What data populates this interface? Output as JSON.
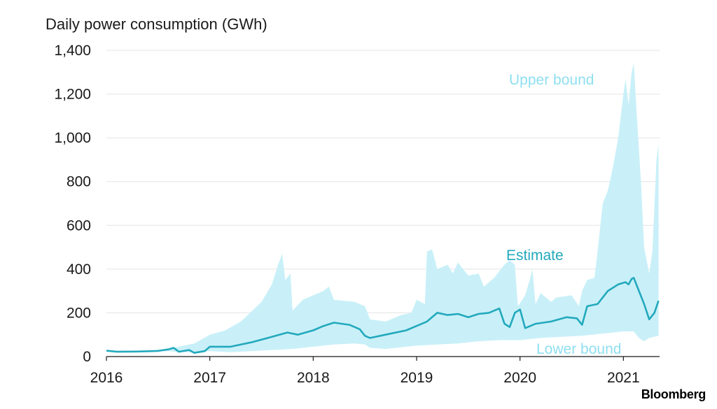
{
  "source_logo": "Bloomberg",
  "chart_data": {
    "type": "area",
    "title": "Daily power consumption (GWh)",
    "xlabel": "",
    "ylabel": "Daily power consumption (GWh)",
    "xlim": [
      2016.0,
      2021.35
    ],
    "ylim": [
      0,
      1400
    ],
    "y_ticks": [
      0,
      200,
      400,
      600,
      800,
      1000,
      1200,
      1400
    ],
    "y_tick_labels": [
      "0",
      "200",
      "400",
      "600",
      "800",
      "1,000",
      "1,200",
      "1,400"
    ],
    "x_ticks": [
      2016,
      2017,
      2018,
      2019,
      2020,
      2021
    ],
    "x_tick_labels": [
      "2016",
      "2017",
      "2018",
      "2019",
      "2020",
      "2021"
    ],
    "grid": true,
    "colors": {
      "band": "#c9f0f8",
      "estimate": "#23a9bd",
      "band_label": "#8fdff0"
    },
    "annotations": {
      "upper": "Upper bound",
      "lower": "Lower bound",
      "estimate": "Estimate"
    },
    "series": [
      {
        "name": "Upper bound",
        "points": [
          [
            2016.0,
            27
          ],
          [
            2016.3,
            24
          ],
          [
            2016.6,
            35
          ],
          [
            2016.7,
            45
          ],
          [
            2016.85,
            60
          ],
          [
            2017.0,
            100
          ],
          [
            2017.15,
            120
          ],
          [
            2017.3,
            160
          ],
          [
            2017.5,
            250
          ],
          [
            2017.6,
            330
          ],
          [
            2017.66,
            420
          ],
          [
            2017.7,
            470
          ],
          [
            2017.73,
            350
          ],
          [
            2017.78,
            380
          ],
          [
            2017.8,
            210
          ],
          [
            2017.9,
            260
          ],
          [
            2018.0,
            280
          ],
          [
            2018.1,
            300
          ],
          [
            2018.15,
            320
          ],
          [
            2018.2,
            260
          ],
          [
            2018.4,
            250
          ],
          [
            2018.5,
            230
          ],
          [
            2018.55,
            170
          ],
          [
            2018.7,
            160
          ],
          [
            2018.85,
            190
          ],
          [
            2018.95,
            200
          ],
          [
            2019.0,
            260
          ],
          [
            2019.08,
            240
          ],
          [
            2019.1,
            480
          ],
          [
            2019.15,
            490
          ],
          [
            2019.2,
            400
          ],
          [
            2019.3,
            420
          ],
          [
            2019.35,
            380
          ],
          [
            2019.4,
            430
          ],
          [
            2019.5,
            370
          ],
          [
            2019.6,
            380
          ],
          [
            2019.65,
            320
          ],
          [
            2019.75,
            360
          ],
          [
            2019.85,
            420
          ],
          [
            2019.9,
            440
          ],
          [
            2019.95,
            420
          ],
          [
            2019.98,
            230
          ],
          [
            2020.05,
            280
          ],
          [
            2020.1,
            360
          ],
          [
            2020.12,
            400
          ],
          [
            2020.15,
            240
          ],
          [
            2020.2,
            290
          ],
          [
            2020.3,
            250
          ],
          [
            2020.35,
            270
          ],
          [
            2020.5,
            280
          ],
          [
            2020.57,
            230
          ],
          [
            2020.6,
            300
          ],
          [
            2020.65,
            350
          ],
          [
            2020.72,
            360
          ],
          [
            2020.75,
            480
          ],
          [
            2020.8,
            700
          ],
          [
            2020.85,
            760
          ],
          [
            2020.9,
            870
          ],
          [
            2020.95,
            1000
          ],
          [
            2021.0,
            1200
          ],
          [
            2021.02,
            1270
          ],
          [
            2021.05,
            1150
          ],
          [
            2021.08,
            1300
          ],
          [
            2021.1,
            1340
          ],
          [
            2021.13,
            1100
          ],
          [
            2021.17,
            800
          ],
          [
            2021.2,
            500
          ],
          [
            2021.25,
            380
          ],
          [
            2021.28,
            480
          ],
          [
            2021.32,
            900
          ],
          [
            2021.34,
            970
          ]
        ]
      },
      {
        "name": "Lower bound",
        "points": [
          [
            2016.0,
            27
          ],
          [
            2016.3,
            20
          ],
          [
            2016.6,
            25
          ],
          [
            2016.7,
            20
          ],
          [
            2016.85,
            20
          ],
          [
            2017.0,
            25
          ],
          [
            2017.2,
            20
          ],
          [
            2017.4,
            25
          ],
          [
            2017.6,
            30
          ],
          [
            2017.8,
            35
          ],
          [
            2018.0,
            45
          ],
          [
            2018.2,
            55
          ],
          [
            2018.4,
            60
          ],
          [
            2018.5,
            55
          ],
          [
            2018.55,
            40
          ],
          [
            2018.7,
            35
          ],
          [
            2018.9,
            45
          ],
          [
            2019.0,
            50
          ],
          [
            2019.2,
            55
          ],
          [
            2019.4,
            60
          ],
          [
            2019.6,
            70
          ],
          [
            2019.8,
            75
          ],
          [
            2020.0,
            75
          ],
          [
            2020.2,
            85
          ],
          [
            2020.4,
            90
          ],
          [
            2020.6,
            95
          ],
          [
            2020.8,
            105
          ],
          [
            2020.9,
            110
          ],
          [
            2021.0,
            115
          ],
          [
            2021.1,
            115
          ],
          [
            2021.15,
            85
          ],
          [
            2021.2,
            70
          ],
          [
            2021.25,
            85
          ],
          [
            2021.34,
            95
          ]
        ]
      },
      {
        "name": "Estimate",
        "points": [
          [
            2016.0,
            27
          ],
          [
            2016.1,
            22
          ],
          [
            2016.3,
            23
          ],
          [
            2016.5,
            26
          ],
          [
            2016.6,
            33
          ],
          [
            2016.65,
            40
          ],
          [
            2016.7,
            22
          ],
          [
            2016.8,
            30
          ],
          [
            2016.85,
            17
          ],
          [
            2016.95,
            25
          ],
          [
            2017.0,
            45
          ],
          [
            2017.2,
            45
          ],
          [
            2017.4,
            65
          ],
          [
            2017.6,
            90
          ],
          [
            2017.75,
            110
          ],
          [
            2017.85,
            100
          ],
          [
            2018.0,
            120
          ],
          [
            2018.1,
            140
          ],
          [
            2018.2,
            155
          ],
          [
            2018.35,
            145
          ],
          [
            2018.45,
            125
          ],
          [
            2018.5,
            95
          ],
          [
            2018.55,
            85
          ],
          [
            2018.7,
            100
          ],
          [
            2018.9,
            120
          ],
          [
            2019.0,
            140
          ],
          [
            2019.1,
            160
          ],
          [
            2019.2,
            200
          ],
          [
            2019.3,
            190
          ],
          [
            2019.4,
            195
          ],
          [
            2019.5,
            180
          ],
          [
            2019.6,
            195
          ],
          [
            2019.7,
            200
          ],
          [
            2019.8,
            220
          ],
          [
            2019.85,
            150
          ],
          [
            2019.9,
            135
          ],
          [
            2019.95,
            200
          ],
          [
            2020.0,
            215
          ],
          [
            2020.05,
            130
          ],
          [
            2020.15,
            150
          ],
          [
            2020.3,
            160
          ],
          [
            2020.45,
            180
          ],
          [
            2020.55,
            175
          ],
          [
            2020.6,
            145
          ],
          [
            2020.65,
            230
          ],
          [
            2020.75,
            240
          ],
          [
            2020.85,
            300
          ],
          [
            2020.95,
            330
          ],
          [
            2021.02,
            340
          ],
          [
            2021.05,
            330
          ],
          [
            2021.08,
            355
          ],
          [
            2021.1,
            360
          ],
          [
            2021.15,
            300
          ],
          [
            2021.2,
            240
          ],
          [
            2021.25,
            170
          ],
          [
            2021.3,
            200
          ],
          [
            2021.34,
            255
          ]
        ]
      }
    ]
  }
}
